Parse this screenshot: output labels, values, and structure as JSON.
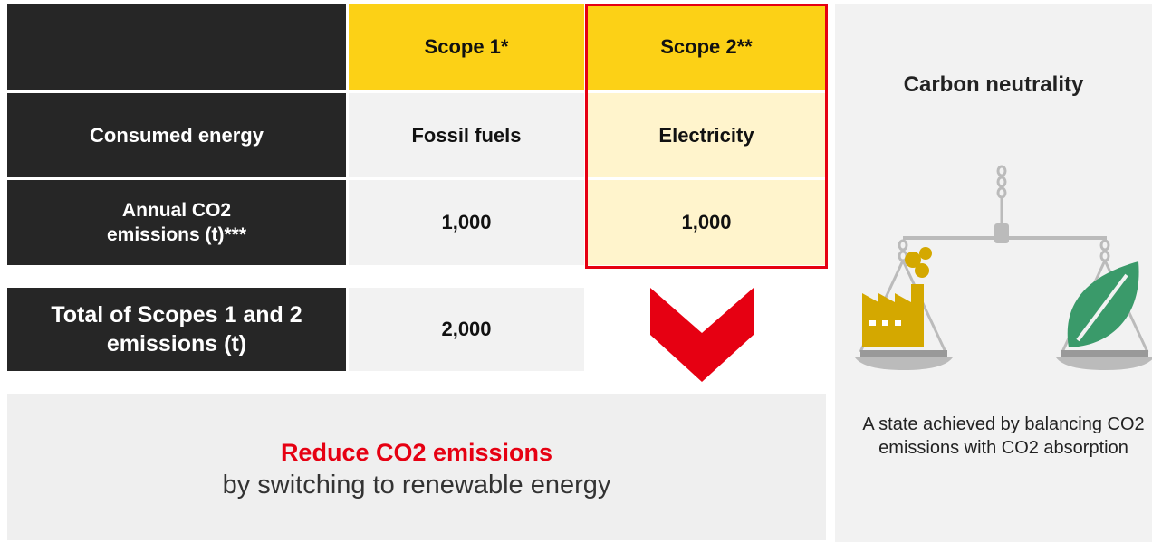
{
  "table": {
    "header": [
      "Scope 1*",
      "Scope 2**"
    ],
    "rows": [
      {
        "label": "Consumed energy",
        "values": [
          "Fossil fuels",
          "Electricity"
        ]
      },
      {
        "label": "Annual CO2 emissions (t)***",
        "values": [
          "1,000",
          "1,000"
        ]
      }
    ],
    "total": {
      "label": "Total of Scopes 1 and 2 emissions (t)",
      "value": "2,000"
    }
  },
  "message": {
    "headline": "Reduce CO2 emissions",
    "text": "by switching to renewable energy"
  },
  "side": {
    "title": "Carbon neutrality",
    "caption": "A state achieved by balancing CO2 emissions with CO2 absorption"
  }
}
